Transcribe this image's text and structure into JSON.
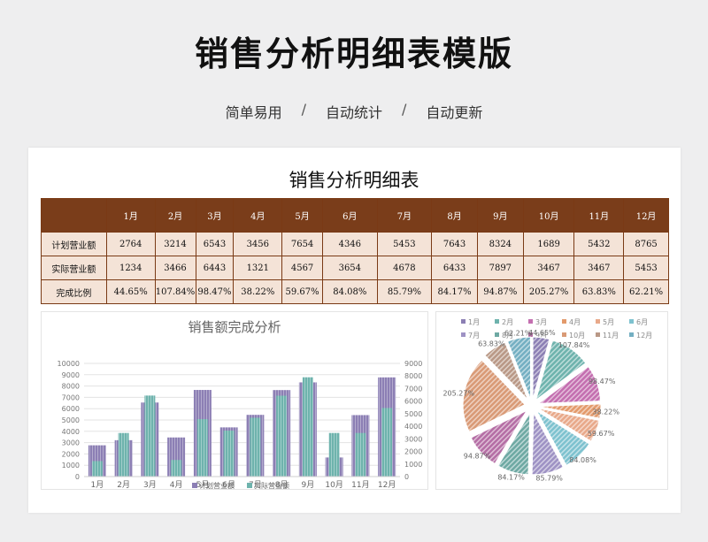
{
  "page": {
    "title": "销售分析明细表模版",
    "subtitle_items": [
      "简单易用",
      "自动统计",
      "自动更新"
    ],
    "separator": "/"
  },
  "table": {
    "title": "销售分析明细表",
    "months": [
      "1月",
      "2月",
      "3月",
      "4月",
      "5月",
      "6月",
      "7月",
      "8月",
      "9月",
      "10月",
      "11月",
      "12月"
    ],
    "rows": [
      {
        "label": "计划营业额",
        "values": [
          "2764",
          "3214",
          "6543",
          "3456",
          "7654",
          "4346",
          "5453",
          "7643",
          "8324",
          "1689",
          "5432",
          "8765"
        ]
      },
      {
        "label": "实际营业额",
        "values": [
          "1234",
          "3466",
          "6443",
          "1321",
          "4567",
          "3654",
          "4678",
          "6433",
          "7897",
          "3467",
          "3467",
          "5453"
        ]
      },
      {
        "label": "完成比例",
        "values": [
          "44.65%",
          "107.84%",
          "98.47%",
          "38.22%",
          "59.67%",
          "84.08%",
          "85.79%",
          "84.17%",
          "94.87%",
          "205.27%",
          "63.83%",
          "62.21%"
        ]
      }
    ]
  },
  "chart_data": [
    {
      "type": "bar",
      "title": "销售额完成分析",
      "categories": [
        "1月",
        "2月",
        "3月",
        "4月",
        "5月",
        "6月",
        "7月",
        "8月",
        "9月",
        "10月",
        "11月",
        "12月"
      ],
      "series": [
        {
          "name": "计划营业额",
          "values": [
            2764,
            3214,
            6543,
            3456,
            7654,
            4346,
            5453,
            7643,
            8324,
            1689,
            5432,
            8765
          ],
          "color": "#8c7fb4"
        },
        {
          "name": "实际营业额",
          "values": [
            1234,
            3466,
            6443,
            1321,
            4567,
            3654,
            4678,
            6433,
            7897,
            3467,
            3467,
            5453
          ],
          "color": "#6eb3ad"
        }
      ],
      "ylim": [
        0,
        10000
      ],
      "yticks": [
        0,
        1000,
        2000,
        3000,
        4000,
        5000,
        6000,
        7000,
        8000,
        9000,
        10000
      ],
      "y2lim": [
        0,
        9000
      ],
      "y2ticks": [
        0,
        1000,
        2000,
        3000,
        4000,
        5000,
        6000,
        7000,
        8000,
        9000
      ],
      "legend": "bottom-center",
      "grid": true
    },
    {
      "type": "pie",
      "title": "",
      "categories": [
        "1月",
        "2月",
        "3月",
        "4月",
        "5月",
        "6月",
        "7月",
        "8月",
        "9月",
        "10月",
        "11月",
        "12月"
      ],
      "values": [
        44.65,
        107.84,
        98.47,
        38.22,
        59.67,
        84.08,
        85.79,
        84.17,
        94.87,
        205.27,
        63.83,
        62.21
      ],
      "labels": [
        "44.65%",
        "107.84%",
        "98.47%",
        "38.22%",
        "59.67%",
        "84.08%",
        "85.79%",
        "84.17%",
        "94.87%",
        "205.27%",
        "63.83%",
        "62.21%"
      ],
      "colors": [
        "#8c7fb4",
        "#6eb3ad",
        "#c46fb0",
        "#e39a6b",
        "#e8a98a",
        "#7ec2cf",
        "#9e92c4",
        "#6ea9a3",
        "#b56ea5",
        "#d99a76",
        "#b99886",
        "#74afc2"
      ],
      "legend": "top"
    }
  ]
}
